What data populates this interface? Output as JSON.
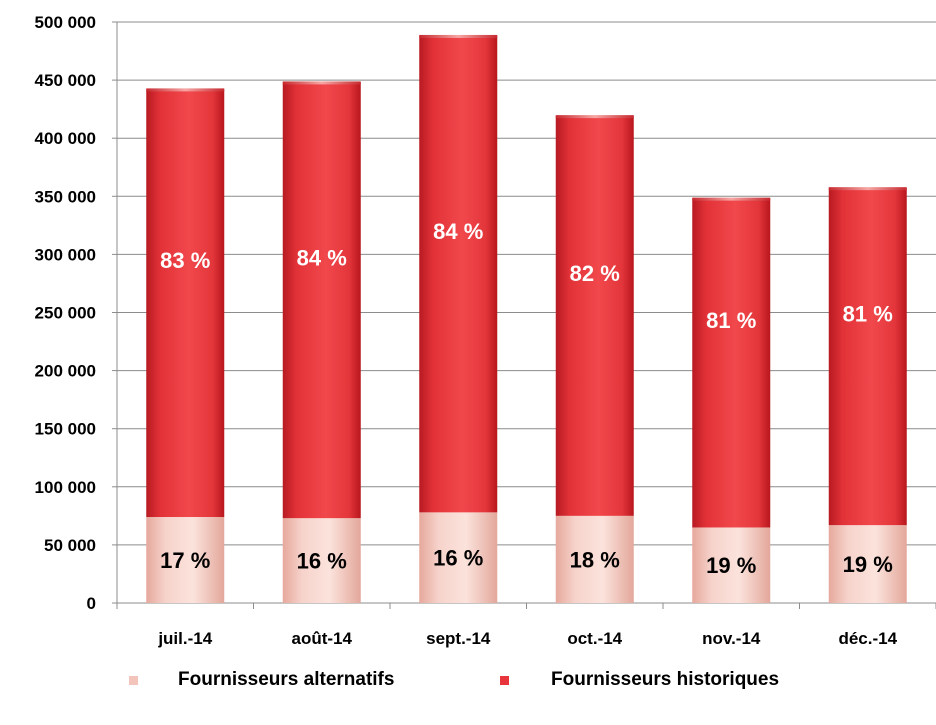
{
  "chart_data": {
    "type": "bar",
    "stacked": true,
    "categories": [
      "juil.-14",
      "août-14",
      "sept.-14",
      "oct.-14",
      "nov.-14",
      "déc.-14"
    ],
    "series": [
      {
        "name": "Fournisseurs alternatifs",
        "values": [
          74000,
          73000,
          78000,
          75000,
          65000,
          67000
        ],
        "labels": [
          "17 %",
          "16 %",
          "16 %",
          "18 %",
          "19 %",
          "19 %"
        ],
        "color": "#f2c4bb"
      },
      {
        "name": "Fournisseurs historiques",
        "values": [
          368000,
          375000,
          410000,
          344000,
          283000,
          290000
        ],
        "labels": [
          "83 %",
          "84 %",
          "84 %",
          "82 %",
          "81 %",
          "81 %"
        ],
        "color": "#e8353b"
      }
    ],
    "y_ticks": [
      "0",
      "50 000",
      "100 000",
      "150 000",
      "200 000",
      "250 000",
      "300 000",
      "350 000",
      "400 000",
      "450 000",
      "500 000"
    ],
    "ylim": [
      0,
      500000
    ],
    "grid": true,
    "legend_position": "bottom"
  }
}
